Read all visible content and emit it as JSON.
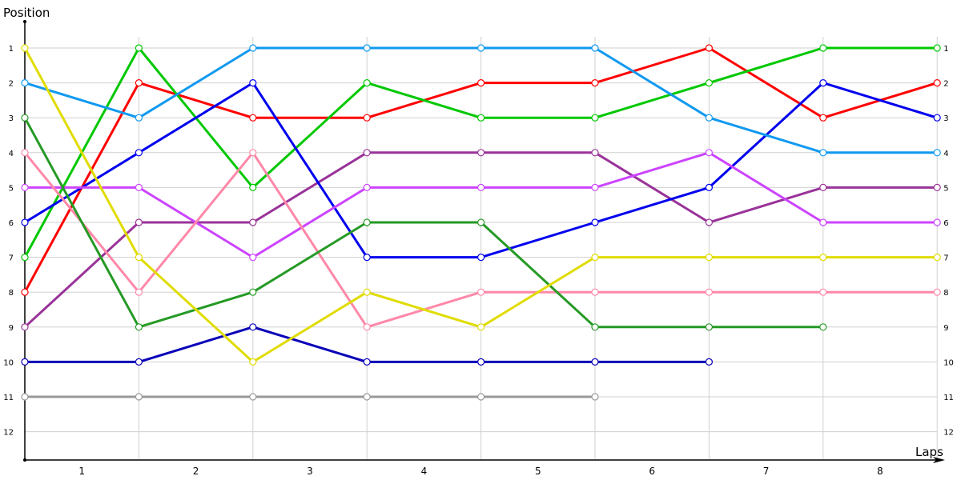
{
  "chart_data": {
    "type": "line",
    "title": "",
    "xlabel": "Laps",
    "ylabel": "Position",
    "x": [
      0,
      1,
      2,
      3,
      4,
      5,
      6,
      7,
      8
    ],
    "x_tick_labels": [
      "1",
      "2",
      "3",
      "4",
      "5",
      "6",
      "7",
      "8"
    ],
    "y_tick_labels": [
      "1",
      "2",
      "3",
      "4",
      "5",
      "6",
      "7",
      "8",
      "9",
      "10",
      "11",
      "12"
    ],
    "ylim": [
      1,
      12
    ],
    "y_inverted": true,
    "grid": true,
    "legend": "none",
    "series": [
      {
        "name": "yellow",
        "color": "#e0dc00",
        "values": [
          1,
          7,
          10,
          8,
          9,
          7,
          7,
          7,
          7
        ]
      },
      {
        "name": "light-blue",
        "color": "#1199f0",
        "values": [
          2,
          3,
          1,
          1,
          1,
          1,
          3,
          4,
          4
        ]
      },
      {
        "name": "dark-green",
        "color": "#259a25",
        "values": [
          3,
          9,
          8,
          6,
          6,
          9,
          9,
          9,
          null
        ]
      },
      {
        "name": "pink",
        "color": "#ff88a8",
        "values": [
          4,
          8,
          4,
          9,
          8,
          8,
          8,
          8,
          8
        ]
      },
      {
        "name": "magenta",
        "color": "#cc44ff",
        "values": [
          5,
          5,
          7,
          5,
          5,
          5,
          4,
          6,
          6
        ]
      },
      {
        "name": "blue",
        "color": "#0000ee",
        "values": [
          6,
          4,
          2,
          7,
          7,
          6,
          5,
          2,
          3
        ]
      },
      {
        "name": "green",
        "color": "#00c800",
        "values": [
          7,
          1,
          5,
          2,
          3,
          3,
          2,
          1,
          1
        ]
      },
      {
        "name": "red",
        "color": "#ff0000",
        "values": [
          8,
          2,
          3,
          3,
          2,
          2,
          1,
          3,
          2
        ]
      },
      {
        "name": "purple",
        "color": "#993399",
        "values": [
          9,
          6,
          6,
          4,
          4,
          4,
          6,
          5,
          5
        ]
      },
      {
        "name": "navy",
        "color": "#0a00b8",
        "values": [
          10,
          10,
          9,
          10,
          10,
          10,
          10,
          null,
          null
        ]
      },
      {
        "name": "gray",
        "color": "#999999",
        "values": [
          11,
          11,
          11,
          11,
          11,
          11,
          null,
          null,
          null
        ]
      }
    ]
  },
  "labels": {
    "y_axis_title": "Position",
    "x_axis_title": "Laps"
  }
}
